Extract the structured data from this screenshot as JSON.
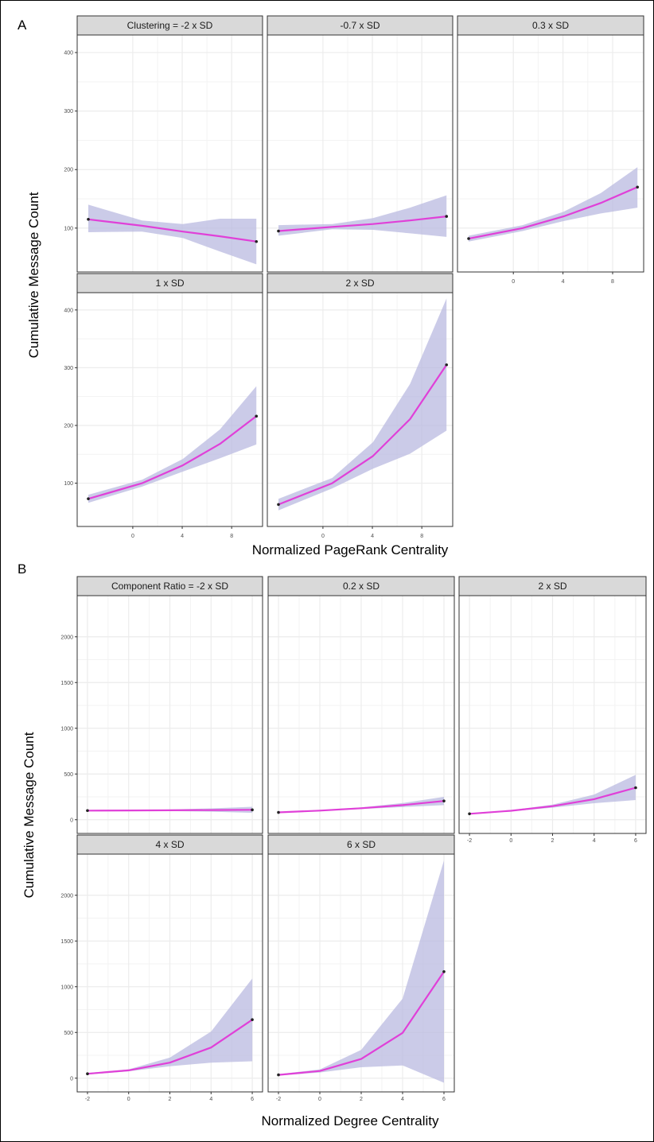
{
  "colors": {
    "line": "#e040d8",
    "ribbon": "#b9b9e0",
    "point": "#222222",
    "strip_fill": "#d9d9d9",
    "grid": "#ececec",
    "panel_border": "#333333"
  },
  "chart_data": [
    {
      "type": "line",
      "panel_label": "A",
      "xlabel": "Normalized PageRank Centrality",
      "ylabel": "Cumulative Message Count",
      "xlim": [
        -4.5,
        10.5
      ],
      "ylim": [
        25,
        430
      ],
      "x_ticks": [
        0,
        4,
        8
      ],
      "x_tick_labels": [
        "0",
        "4",
        "8"
      ],
      "y_ticks": [
        100,
        200,
        300,
        400
      ],
      "y_tick_labels": [
        "100",
        "200",
        "300",
        "400"
      ],
      "x": [
        -3.6,
        0.75,
        4.05,
        7.05,
        10.0
      ],
      "facets": [
        {
          "strip": "Clustering = -2 x SD",
          "y": [
            115,
            104,
            94,
            86,
            77
          ],
          "lower": [
            93,
            94,
            83,
            60,
            38
          ],
          "upper": [
            140,
            113,
            107,
            116,
            116
          ]
        },
        {
          "strip": "-0.7 x SD",
          "y": [
            95,
            102,
            107,
            113,
            120
          ],
          "lower": [
            87,
            98,
            97,
            91,
            85
          ],
          "upper": [
            105,
            107,
            117,
            135,
            156
          ]
        },
        {
          "strip": "0.3 x SD",
          "y": [
            82,
            100,
            120,
            143,
            170
          ],
          "lower": [
            77,
            95,
            112,
            125,
            135
          ],
          "upper": [
            87,
            105,
            128,
            160,
            204
          ]
        },
        {
          "strip": "1 x SD",
          "y": [
            73,
            100,
            131,
            168,
            216
          ],
          "lower": [
            66,
            94,
            120,
            143,
            167
          ],
          "upper": [
            80,
            106,
            142,
            193,
            268
          ]
        },
        {
          "strip": "2 x SD",
          "y": [
            63,
            100,
            147,
            211,
            305
          ],
          "lower": [
            53,
            91,
            125,
            151,
            191
          ],
          "upper": [
            73,
            109,
            171,
            272,
            420
          ]
        }
      ]
    },
    {
      "type": "line",
      "panel_label": "B",
      "xlabel": "Normalized Degree Centrality",
      "ylabel": "Cumulative Message Count",
      "xlim": [
        -2.5,
        6.5
      ],
      "ylim": [
        -150,
        2450
      ],
      "x_ticks": [
        -2,
        0,
        2,
        4,
        6
      ],
      "x_tick_labels": [
        "-2",
        "0",
        "2",
        "4",
        "6"
      ],
      "y_ticks": [
        0,
        500,
        1000,
        1500,
        2000
      ],
      "y_tick_labels": [
        "0",
        "500",
        "1000",
        "1500",
        "2000"
      ],
      "x": [
        -2,
        0,
        2,
        4,
        6
      ],
      "facets": [
        {
          "strip": "Component Ratio = -2 x SD",
          "y": [
            100,
            101,
            103,
            106,
            108
          ],
          "lower": [
            95,
            96,
            94,
            88,
            75
          ],
          "upper": [
            105,
            106,
            112,
            124,
            141
          ]
        },
        {
          "strip": "0.2 x SD",
          "y": [
            80,
            100,
            126,
            160,
            205
          ],
          "lower": [
            75,
            96,
            117,
            138,
            160
          ],
          "upper": [
            85,
            104,
            135,
            182,
            250
          ]
        },
        {
          "strip": "2 x SD",
          "y": [
            65,
            98,
            148,
            225,
            350
          ],
          "lower": [
            58,
            92,
            132,
            180,
            215
          ],
          "upper": [
            72,
            104,
            165,
            275,
            490
          ]
        },
        {
          "strip": "4 x SD",
          "y": [
            48,
            86,
            170,
            335,
            640
          ],
          "lower": [
            40,
            75,
            130,
            170,
            185
          ],
          "upper": [
            56,
            97,
            225,
            510,
            1090
          ]
        },
        {
          "strip": "6 x SD",
          "y": [
            36,
            79,
            210,
            495,
            1165
          ],
          "lower": [
            28,
            62,
            120,
            140,
            -50
          ],
          "upper": [
            44,
            96,
            310,
            870,
            2380
          ]
        }
      ]
    }
  ]
}
